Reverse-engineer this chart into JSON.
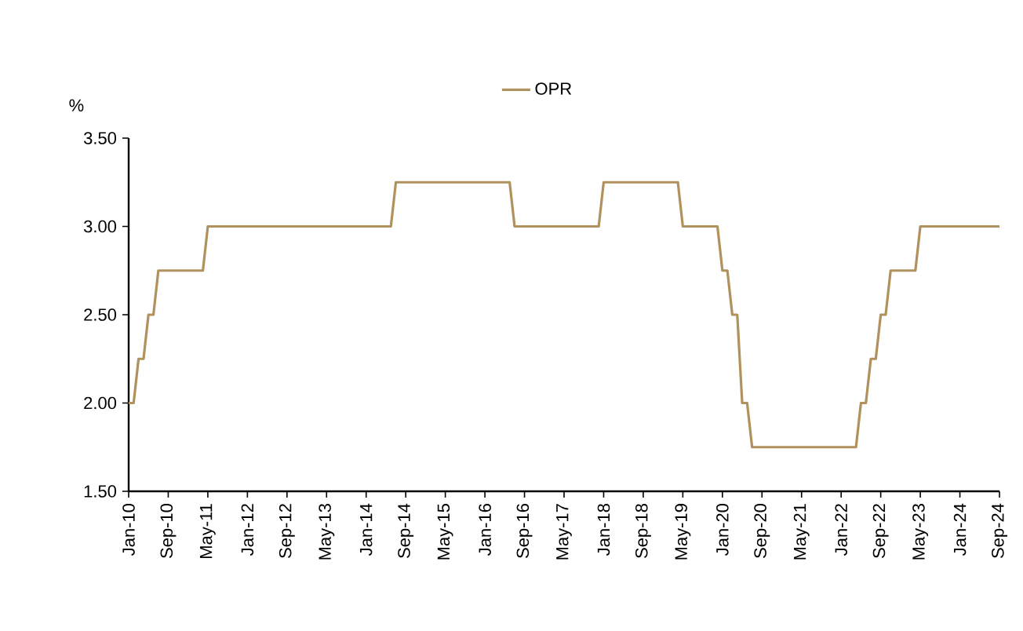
{
  "chart_data": {
    "type": "line",
    "ylabel": "%",
    "x": [
      "2010-01",
      "2010-02",
      "2010-03",
      "2010-04",
      "2010-05",
      "2010-06",
      "2010-07",
      "2011-04",
      "2011-05",
      "2014-06",
      "2014-07",
      "2016-06",
      "2016-07",
      "2017-12",
      "2018-01",
      "2019-04",
      "2019-05",
      "2019-12",
      "2020-01",
      "2020-02",
      "2020-03",
      "2020-04",
      "2020-05",
      "2020-06",
      "2020-07",
      "2022-04",
      "2022-05",
      "2022-06",
      "2022-07",
      "2022-08",
      "2022-09",
      "2022-10",
      "2022-11",
      "2023-04",
      "2023-05",
      "2024-09"
    ],
    "series": [
      {
        "name": "OPR",
        "color": "#b0925e",
        "values": [
          2.0,
          2.0,
          2.25,
          2.25,
          2.5,
          2.5,
          2.75,
          2.75,
          3.0,
          3.0,
          3.25,
          3.25,
          3.0,
          3.0,
          3.25,
          3.25,
          3.0,
          3.0,
          2.75,
          2.75,
          2.5,
          2.5,
          2.0,
          2.0,
          1.75,
          1.75,
          2.0,
          2.0,
          2.25,
          2.25,
          2.5,
          2.5,
          2.75,
          2.75,
          3.0,
          3.0
        ]
      }
    ],
    "xlim": [
      "2010-01",
      "2024-09"
    ],
    "xticks": [
      {
        "value": "2010-01",
        "label": "Jan-10"
      },
      {
        "value": "2010-09",
        "label": "Sep-10"
      },
      {
        "value": "2011-05",
        "label": "May-11"
      },
      {
        "value": "2012-01",
        "label": "Jan-12"
      },
      {
        "value": "2012-09",
        "label": "Sep-12"
      },
      {
        "value": "2013-05",
        "label": "May-13"
      },
      {
        "value": "2014-01",
        "label": "Jan-14"
      },
      {
        "value": "2014-09",
        "label": "Sep-14"
      },
      {
        "value": "2015-05",
        "label": "May-15"
      },
      {
        "value": "2016-01",
        "label": "Jan-16"
      },
      {
        "value": "2016-09",
        "label": "Sep-16"
      },
      {
        "value": "2017-05",
        "label": "May-17"
      },
      {
        "value": "2018-01",
        "label": "Jan-18"
      },
      {
        "value": "2018-09",
        "label": "Sep-18"
      },
      {
        "value": "2019-05",
        "label": "May-19"
      },
      {
        "value": "2020-01",
        "label": "Jan-20"
      },
      {
        "value": "2020-09",
        "label": "Sep-20"
      },
      {
        "value": "2021-05",
        "label": "May-21"
      },
      {
        "value": "2022-01",
        "label": "Jan-22"
      },
      {
        "value": "2022-09",
        "label": "Sep-22"
      },
      {
        "value": "2023-05",
        "label": "May-23"
      },
      {
        "value": "2024-01",
        "label": "Jan-24"
      },
      {
        "value": "2024-09",
        "label": "Sep-24"
      }
    ],
    "ylim": [
      1.5,
      3.5
    ],
    "yticks": [
      {
        "value": 1.5,
        "label": "1.50"
      },
      {
        "value": 2.0,
        "label": "2.00"
      },
      {
        "value": 2.5,
        "label": "2.50"
      },
      {
        "value": 3.0,
        "label": "3.00"
      },
      {
        "value": 3.5,
        "label": "3.50"
      }
    ],
    "grid": false,
    "legend": "top",
    "line_style": "solid"
  }
}
